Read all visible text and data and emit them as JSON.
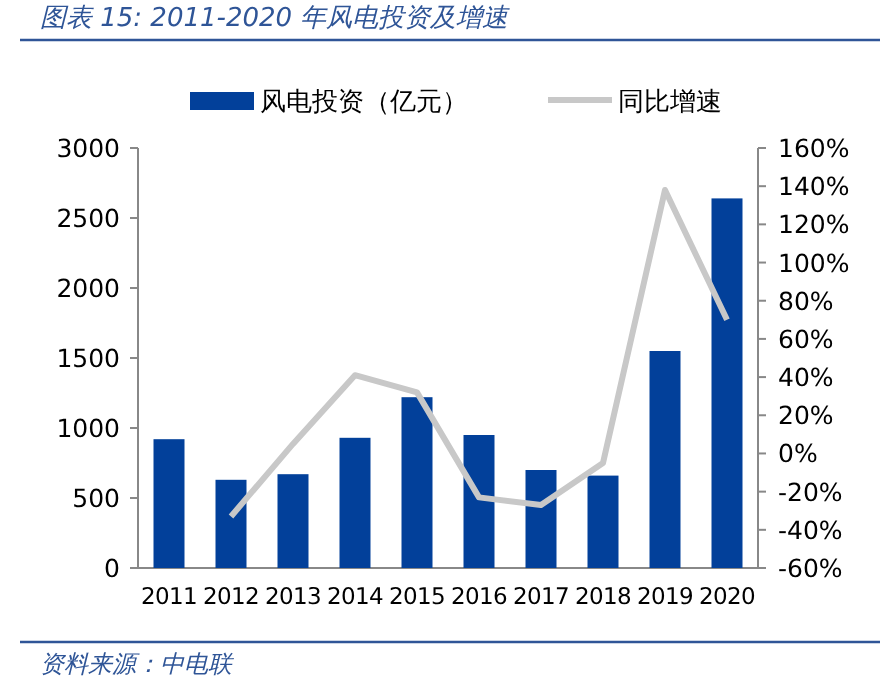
{
  "chart_data": {
    "type": "bar",
    "title": "图表 15:  2011-2020 年风电投资及增速",
    "categories": [
      "2011",
      "2012",
      "2013",
      "2014",
      "2015",
      "2016",
      "2017",
      "2018",
      "2019",
      "2020"
    ],
    "series": [
      {
        "name": "风电投资（亿元）",
        "color": "#02409a",
        "values": [
          920,
          630,
          670,
          930,
          1220,
          950,
          700,
          660,
          1550,
          2640
        ]
      },
      {
        "name": "同比增速",
        "type": "line",
        "axis": "y2",
        "color": "#c8c8c8",
        "values": [
          null,
          -33,
          5,
          41,
          32,
          -23,
          -27,
          -5,
          138,
          70
        ]
      }
    ],
    "ylim": [
      0,
      3000
    ],
    "yticks": [
      0,
      500,
      1000,
      1500,
      2000,
      2500,
      3000
    ],
    "y2lim": [
      -60,
      160
    ],
    "y2ticks": [
      {
        "value": -60,
        "label": "-60%"
      },
      {
        "value": -40,
        "label": "-40%"
      },
      {
        "value": -20,
        "label": "-20%"
      },
      {
        "value": 0,
        "label": "0%"
      },
      {
        "value": 20,
        "label": "20%"
      },
      {
        "value": 40,
        "label": "40%"
      },
      {
        "value": 60,
        "label": "60%"
      },
      {
        "value": 80,
        "label": "80%"
      },
      {
        "value": 100,
        "label": "100%"
      },
      {
        "value": 120,
        "label": "120%"
      },
      {
        "value": 140,
        "label": "140%"
      },
      {
        "value": 160,
        "label": "160%"
      }
    ],
    "legend": "top",
    "grid": false,
    "annotations": [
      "资料来源：中电联"
    ]
  }
}
